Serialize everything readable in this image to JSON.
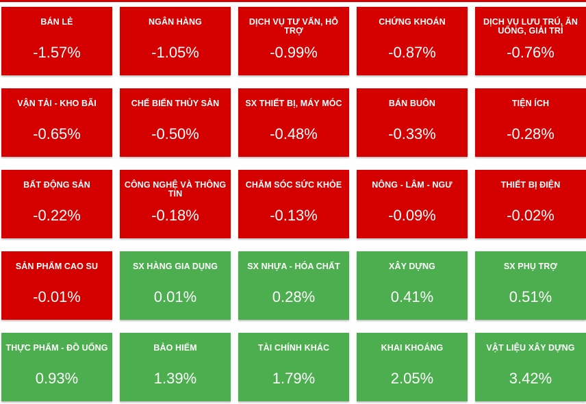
{
  "colors": {
    "negative": "#d40000",
    "positive": "#4cae4f",
    "text": "#ffffff"
  },
  "sectors": [
    {
      "name": "BÁN LẺ",
      "change": "-1.57%",
      "direction": "neg"
    },
    {
      "name": "NGÂN HÀNG",
      "change": "-1.05%",
      "direction": "neg"
    },
    {
      "name": "DỊCH VỤ TƯ VẤN, HỖ TRỢ",
      "change": "-0.99%",
      "direction": "neg"
    },
    {
      "name": "CHỨNG KHOÁN",
      "change": "-0.87%",
      "direction": "neg"
    },
    {
      "name": "DỊCH VỤ LƯU TRÚ, ĂN UỐNG, GIẢI TRÍ",
      "change": "-0.76%",
      "direction": "neg"
    },
    {
      "name": "VẬN TẢI - KHO BÃI",
      "change": "-0.65%",
      "direction": "neg"
    },
    {
      "name": "CHẾ BIẾN THỦY SẢN",
      "change": "-0.50%",
      "direction": "neg"
    },
    {
      "name": "SX THIẾT BỊ, MÁY MÓC",
      "change": "-0.48%",
      "direction": "neg"
    },
    {
      "name": "BÁN BUÔN",
      "change": "-0.33%",
      "direction": "neg"
    },
    {
      "name": "TIỆN ÍCH",
      "change": "-0.28%",
      "direction": "neg"
    },
    {
      "name": "BẤT ĐỘNG SẢN",
      "change": "-0.22%",
      "direction": "neg"
    },
    {
      "name": "CÔNG NGHỆ VÀ THÔNG TIN",
      "change": "-0.18%",
      "direction": "neg"
    },
    {
      "name": "CHĂM SÓC SỨC KHỎE",
      "change": "-0.13%",
      "direction": "neg"
    },
    {
      "name": "NÔNG - LÂM - NGƯ",
      "change": "-0.09%",
      "direction": "neg"
    },
    {
      "name": "THIẾT BỊ ĐIỆN",
      "change": "-0.02%",
      "direction": "neg"
    },
    {
      "name": "SẢN PHẨM CAO SU",
      "change": "-0.01%",
      "direction": "neg"
    },
    {
      "name": "SX HÀNG GIA DỤNG",
      "change": "0.01%",
      "direction": "pos"
    },
    {
      "name": "SX NHỰA - HÓA CHẤT",
      "change": "0.28%",
      "direction": "pos"
    },
    {
      "name": "XÂY DỰNG",
      "change": "0.41%",
      "direction": "pos"
    },
    {
      "name": "SX PHỤ TRỢ",
      "change": "0.51%",
      "direction": "pos"
    },
    {
      "name": "THỰC PHẨM - ĐỒ UỐNG",
      "change": "0.93%",
      "direction": "pos"
    },
    {
      "name": "BẢO HIỂM",
      "change": "1.39%",
      "direction": "pos"
    },
    {
      "name": "TÀI CHÍNH KHÁC",
      "change": "1.79%",
      "direction": "pos"
    },
    {
      "name": "KHAI KHOÁNG",
      "change": "2.05%",
      "direction": "pos"
    },
    {
      "name": "VẬT LIỆU XÂY DỰNG",
      "change": "3.42%",
      "direction": "pos"
    }
  ]
}
